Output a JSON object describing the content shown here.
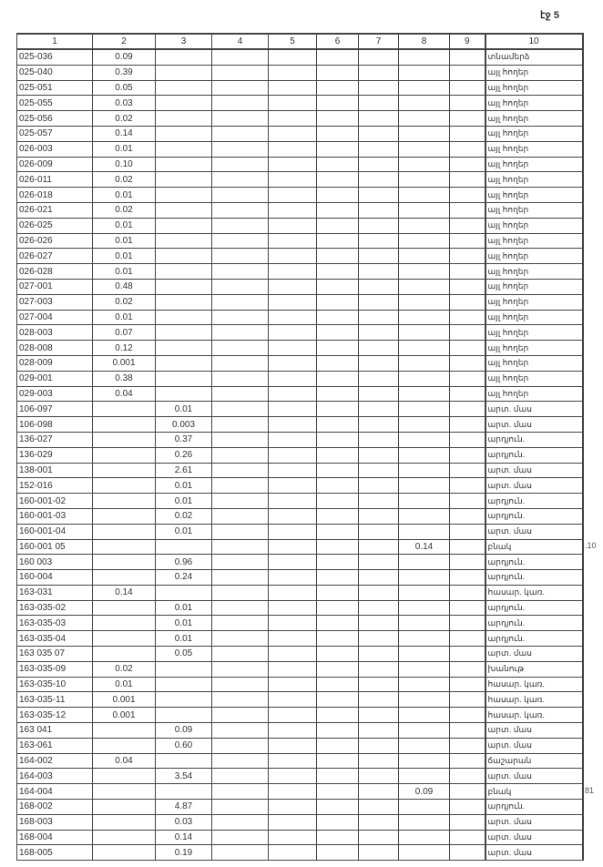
{
  "page_label": "էջ 5",
  "margin_notes": [
    ".10",
    "81"
  ],
  "table": {
    "headers": [
      "1",
      "2",
      "3",
      "4",
      "5",
      "6",
      "7",
      "8",
      "9",
      "10"
    ],
    "rows": [
      [
        "025-036",
        "0.09",
        "",
        "",
        "",
        "",
        "",
        "",
        "",
        "տնամերձ"
      ],
      [
        "025-040",
        "0.39",
        "",
        "",
        "",
        "",
        "",
        "",
        "",
        "այլ հողեր"
      ],
      [
        "025-051",
        "0.05",
        "",
        "",
        "",
        "",
        "",
        "",
        "",
        "այլ հողեր"
      ],
      [
        "025-055",
        "0.03",
        "",
        "",
        "",
        "",
        "",
        "",
        "",
        "այլ հողեր"
      ],
      [
        "025-056",
        "0.02",
        "",
        "",
        "",
        "",
        "",
        "",
        "",
        "այլ հողեր"
      ],
      [
        "025-057",
        "0.14",
        "",
        "",
        "",
        "",
        "",
        "",
        "",
        "այլ հողեր"
      ],
      [
        "026-003",
        "0.01",
        "",
        "",
        "",
        "",
        "",
        "",
        "",
        "այլ հողեր"
      ],
      [
        "026-009",
        "0.10",
        "",
        "",
        "",
        "",
        "",
        "",
        "",
        "այլ հողեր"
      ],
      [
        "026-011",
        "0.02",
        "",
        "",
        "",
        "",
        "",
        "",
        "",
        "այլ հողեր"
      ],
      [
        "026-018",
        "0.01",
        "",
        "",
        "",
        "",
        "",
        "",
        "",
        "այլ հողեր"
      ],
      [
        "026-021",
        "0.02",
        "",
        "",
        "",
        "",
        "",
        "",
        "",
        "այլ հողեր"
      ],
      [
        "026-025",
        "0.01",
        "",
        "",
        "",
        "",
        "",
        "",
        "",
        "այլ հողեր"
      ],
      [
        "026-026",
        "0.01",
        "",
        "",
        "",
        "",
        "",
        "",
        "",
        "այլ հողեր"
      ],
      [
        "026-027",
        "0.01",
        "",
        "",
        "",
        "",
        "",
        "",
        "",
        "այլ հողեր"
      ],
      [
        "026-028",
        "0.01",
        "",
        "",
        "",
        "",
        "",
        "",
        "",
        "այլ հողեր"
      ],
      [
        "027-001",
        "0.48",
        "",
        "",
        "",
        "",
        "",
        "",
        "",
        "այլ հողեր"
      ],
      [
        "027-003",
        "0.02",
        "",
        "",
        "",
        "",
        "",
        "",
        "",
        "այլ հողեր"
      ],
      [
        "027-004",
        "0.01",
        "",
        "",
        "",
        "",
        "",
        "",
        "",
        "այլ հողեր"
      ],
      [
        "028-003",
        "0.07",
        "",
        "",
        "",
        "",
        "",
        "",
        "",
        "այլ հողեր"
      ],
      [
        "028-008",
        "0.12",
        "",
        "",
        "",
        "",
        "",
        "",
        "",
        "այլ հողեր"
      ],
      [
        "028-009",
        "0.001",
        "",
        "",
        "",
        "",
        "",
        "",
        "",
        "այլ հողեր"
      ],
      [
        "029-001",
        "0.38",
        "",
        "",
        "",
        "",
        "",
        "",
        "",
        "այլ հողեր"
      ],
      [
        "029-003",
        "0.04",
        "",
        "",
        "",
        "",
        "",
        "",
        "",
        "այլ հողեր"
      ],
      [
        "106-097",
        "",
        "0.01",
        "",
        "",
        "",
        "",
        "",
        "",
        "արտ. մաս"
      ],
      [
        "106-098",
        "",
        "0.003",
        "",
        "",
        "",
        "",
        "",
        "",
        "արտ. մաս"
      ],
      [
        "136-027",
        "",
        "0.37",
        "",
        "",
        "",
        "",
        "",
        "",
        "արդյուն."
      ],
      [
        "136-029",
        "",
        "0.26",
        "",
        "",
        "",
        "",
        "",
        "",
        "արդյուն."
      ],
      [
        "138-001",
        "",
        "2.61",
        "",
        "",
        "",
        "",
        "",
        "",
        "արտ. մաս"
      ],
      [
        "152-016",
        "",
        "0.01",
        "",
        "",
        "",
        "",
        "",
        "",
        "արտ. մաս"
      ],
      [
        "160-001-02",
        "",
        "0.01",
        "",
        "",
        "",
        "",
        "",
        "",
        "արդյուն."
      ],
      [
        "160-001-03",
        "",
        "0.02",
        "",
        "",
        "",
        "",
        "",
        "",
        "արդյուն."
      ],
      [
        "160-001-04",
        "",
        "0.01",
        "",
        "",
        "",
        "",
        "",
        "",
        "արտ. մաս"
      ],
      [
        "160-001 05",
        "",
        "",
        "",
        "",
        "",
        "",
        "0.14",
        "",
        "բնակ"
      ],
      [
        "160 003",
        "",
        "0.96",
        "",
        "",
        "",
        "",
        "",
        "",
        "արդյուն."
      ],
      [
        "160-004",
        "",
        "0.24",
        "",
        "",
        "",
        "",
        "",
        "",
        "արդյուն."
      ],
      [
        "163-031",
        "0.14",
        "",
        "",
        "",
        "",
        "",
        "",
        "",
        "հասար. կառ."
      ],
      [
        "163-035-02",
        "",
        "0.01",
        "",
        "",
        "",
        "",
        "",
        "",
        "արդյուն."
      ],
      [
        "163-035-03",
        "",
        "0.01",
        "",
        "",
        "",
        "",
        "",
        "",
        "արդյուն."
      ],
      [
        "163-035-04",
        "",
        "0.01",
        "",
        "",
        "",
        "",
        "",
        "",
        "արդյուն."
      ],
      [
        "163 035 07",
        "",
        "0.05",
        "",
        "",
        "",
        "",
        "",
        "",
        "արտ. մաս"
      ],
      [
        "163-035-09",
        "0.02",
        "",
        "",
        "",
        "",
        "",
        "",
        "",
        "խանութ"
      ],
      [
        "163-035-10",
        "0.01",
        "",
        "",
        "",
        "",
        "",
        "",
        "",
        "հասար. կառ."
      ],
      [
        "163-035-11",
        "0.001",
        "",
        "",
        "",
        "",
        "",
        "",
        "",
        "հասար. կառ."
      ],
      [
        "163-035-12",
        "0.001",
        "",
        "",
        "",
        "",
        "",
        "",
        "",
        "հասար. կառ."
      ],
      [
        "163 041",
        "",
        "0.09",
        "",
        "",
        "",
        "",
        "",
        "",
        "արտ. մաս"
      ],
      [
        "163-061",
        "",
        "0.60",
        "",
        "",
        "",
        "",
        "",
        "",
        "արտ. մաս"
      ],
      [
        "164-002",
        "0.04",
        "",
        "",
        "",
        "",
        "",
        "",
        "",
        "ճաշարան"
      ],
      [
        "164-003",
        "",
        "3.54",
        "",
        "",
        "",
        "",
        "",
        "",
        "արտ. մաս"
      ],
      [
        "164-004",
        "",
        "",
        "",
        "",
        "",
        "",
        "0.09",
        "",
        "բնակ"
      ],
      [
        "168-002",
        "",
        "4.87",
        "",
        "",
        "",
        "",
        "",
        "",
        "արդյուն."
      ],
      [
        "168-003",
        "",
        "0.03",
        "",
        "",
        "",
        "",
        "",
        "",
        "արտ. մաս"
      ],
      [
        "168-004",
        "",
        "0.14",
        "",
        "",
        "",
        "",
        "",
        "",
        "արտ. մաս"
      ],
      [
        "168-005",
        "",
        "0.19",
        "",
        "",
        "",
        "",
        "",
        "",
        "արտ. մաս"
      ]
    ]
  }
}
